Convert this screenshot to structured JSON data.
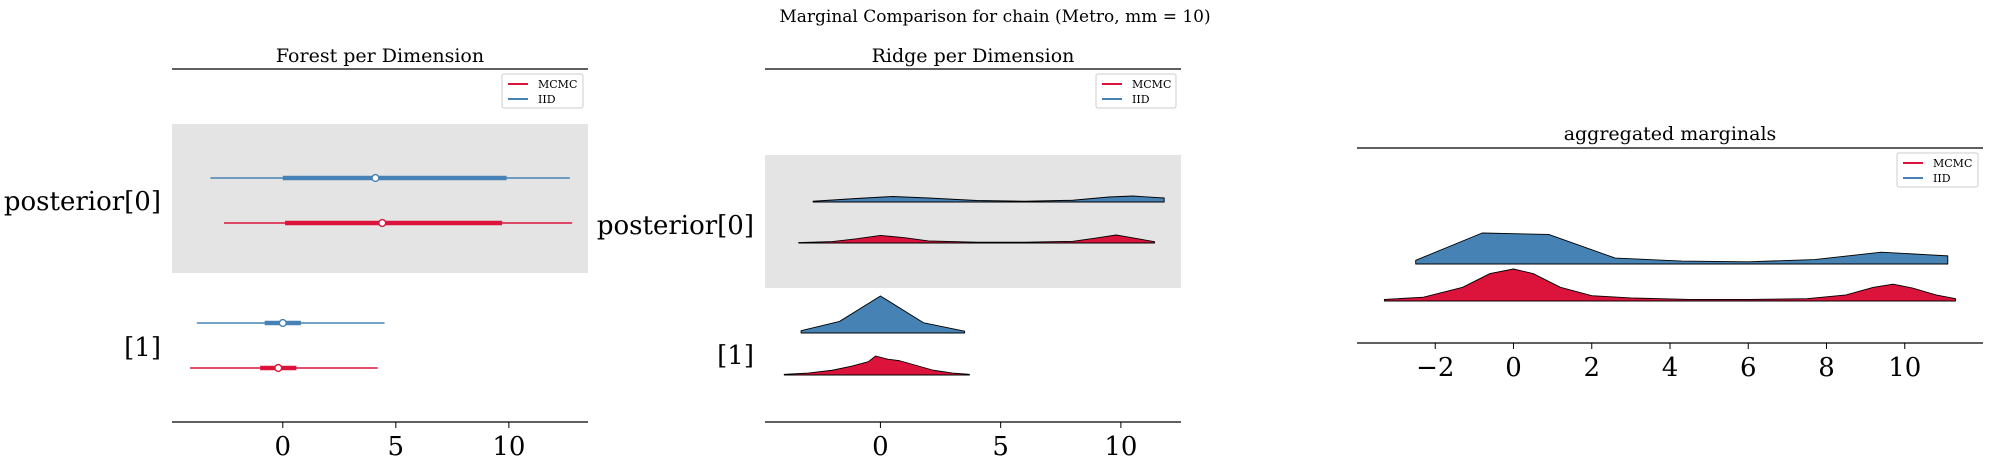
{
  "suptitle": "Marginal Comparison for chain (Metro, mm = 10)",
  "colors": {
    "mcmc": "#dc143c",
    "iid": "#4682b4",
    "shade": "#e4e4e4",
    "axis": "#000000"
  },
  "legend": {
    "mcmc": "MCMC",
    "iid": "IID"
  },
  "chart_data": [
    {
      "type": "forest",
      "title": "Forest per Dimension",
      "row_labels": [
        "posterior[0]",
        "[1]"
      ],
      "xticks": [
        0,
        5,
        10
      ],
      "xlim": [
        -4.9,
        13.5
      ],
      "shaded_row": "posterior[0]",
      "legend_position": "top-right",
      "series": [
        {
          "name": "IID",
          "row": "posterior[0]",
          "hdi": [
            -3.2,
            12.7
          ],
          "iqr": [
            0.0,
            9.9
          ],
          "median": 4.1
        },
        {
          "name": "MCMC",
          "row": "posterior[0]",
          "hdi": [
            -2.6,
            12.8
          ],
          "iqr": [
            0.1,
            9.7
          ],
          "median": 4.4
        },
        {
          "name": "IID",
          "row": "[1]",
          "hdi": [
            -3.8,
            4.5
          ],
          "iqr": [
            -0.8,
            0.8
          ],
          "median": 0.0
        },
        {
          "name": "MCMC",
          "row": "[1]",
          "hdi": [
            -4.1,
            4.2
          ],
          "iqr": [
            -1.0,
            0.6
          ],
          "median": -0.2
        }
      ]
    },
    {
      "type": "ridge",
      "title": "Ridge per Dimension",
      "row_labels": [
        "posterior[0]",
        "[1]"
      ],
      "xticks": [
        0,
        5,
        10
      ],
      "xlim": [
        -4.8,
        12.5
      ],
      "shaded_row": "posterior[0]",
      "legend_position": "top-right",
      "series": [
        {
          "name": "IID",
          "row": "posterior[0]",
          "x": [
            -2.8,
            -1,
            0.5,
            2,
            4,
            6,
            8,
            9.5,
            10.5,
            11.8
          ],
          "density": [
            0.03,
            0.14,
            0.22,
            0.16,
            0.06,
            0.03,
            0.07,
            0.2,
            0.24,
            0.16
          ]
        },
        {
          "name": "MCMC",
          "row": "posterior[0]",
          "x": [
            -3.4,
            -2,
            -1,
            0,
            1,
            2,
            4,
            6,
            8,
            9,
            9.8,
            10.6,
            11.4
          ],
          "density": [
            0.02,
            0.07,
            0.2,
            0.36,
            0.25,
            0.1,
            0.04,
            0.04,
            0.08,
            0.24,
            0.38,
            0.22,
            0.06
          ]
        },
        {
          "name": "IID",
          "row": "[1]",
          "x": [
            -3.3,
            -1.7,
            0,
            1.8,
            3.5
          ],
          "density": [
            0.05,
            0.25,
            0.8,
            0.22,
            0.04
          ]
        },
        {
          "name": "MCMC",
          "row": "[1]",
          "x": [
            -4.0,
            -3.0,
            -2.0,
            -1.2,
            -0.5,
            -0.2,
            0.3,
            0.8,
            1.5,
            2.2,
            3.0,
            3.7
          ],
          "density": [
            0.02,
            0.06,
            0.15,
            0.28,
            0.42,
            0.6,
            0.5,
            0.45,
            0.3,
            0.15,
            0.06,
            0.02
          ]
        }
      ]
    },
    {
      "type": "ridge",
      "title": "aggregated marginals",
      "row_labels": [],
      "xticks": [
        -2,
        0,
        2,
        4,
        6,
        8,
        10
      ],
      "xlim": [
        -4.0,
        12.0
      ],
      "legend_position": "top-right",
      "series": [
        {
          "name": "IID",
          "x": [
            -2.5,
            -0.8,
            0.9,
            2.6,
            4.3,
            6.0,
            7.7,
            9.4,
            11.1
          ],
          "density": [
            0.05,
            0.42,
            0.4,
            0.08,
            0.04,
            0.03,
            0.06,
            0.16,
            0.11
          ]
        },
        {
          "name": "MCMC",
          "x": [
            -3.3,
            -2.3,
            -1.3,
            -0.6,
            0.0,
            0.5,
            1.2,
            2.0,
            3.0,
            4.5,
            6.0,
            7.5,
            8.5,
            9.2,
            9.7,
            10.2,
            10.8,
            11.3
          ],
          "density": [
            0.02,
            0.05,
            0.18,
            0.36,
            0.42,
            0.36,
            0.18,
            0.07,
            0.04,
            0.02,
            0.02,
            0.03,
            0.08,
            0.18,
            0.22,
            0.17,
            0.08,
            0.03
          ]
        }
      ]
    }
  ]
}
